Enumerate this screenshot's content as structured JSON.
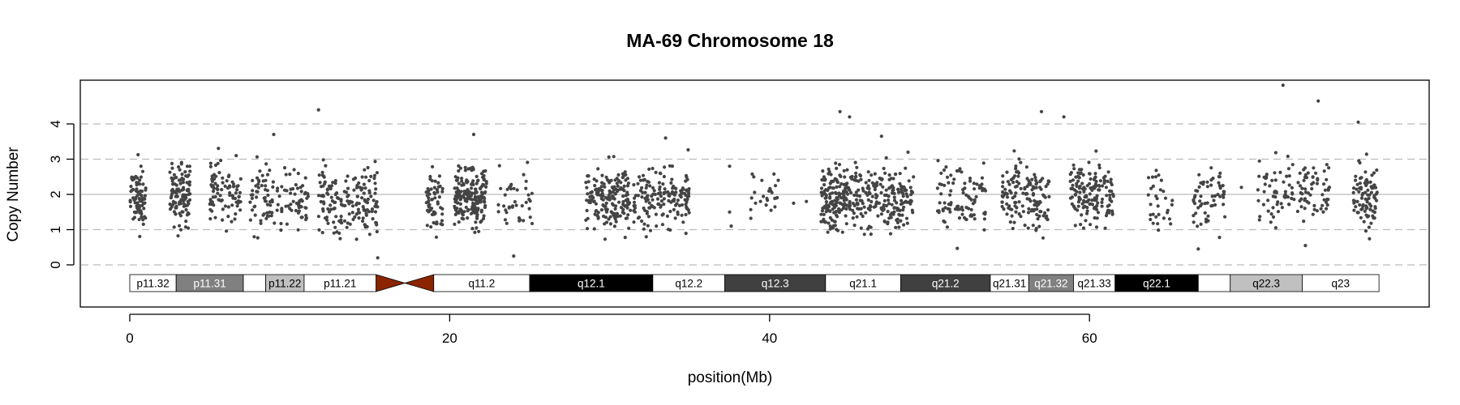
{
  "chart_data": {
    "type": "scatter",
    "title": "MA-69  Chromosome 18",
    "xlabel": "position(Mb)",
    "ylabel": "Copy Number",
    "x_ticks": [
      0,
      20,
      40,
      60
    ],
    "y_ticks": [
      0,
      1,
      2,
      3,
      4
    ],
    "xlim": [
      -3,
      81
    ],
    "ylim": [
      -1.2,
      5.2
    ],
    "point_color": "#444444",
    "hlines": [
      {
        "y": 0,
        "style": "dashed",
        "color": "#bbbbbb"
      },
      {
        "y": 1,
        "style": "dashed",
        "color": "#bbbbbb"
      },
      {
        "y": 2,
        "style": "solid",
        "color": "#bbbbbb"
      },
      {
        "y": 3,
        "style": "dashed",
        "color": "#bbbbbb"
      },
      {
        "y": 4,
        "style": "dashed",
        "color": "#bbbbbb"
      }
    ],
    "clusters": [
      {
        "x_start": 0.0,
        "x_end": 1.0,
        "center": 1.9,
        "spread": 0.45,
        "n": 80
      },
      {
        "x_start": 2.5,
        "x_end": 3.8,
        "center": 2.0,
        "spread": 0.45,
        "n": 110
      },
      {
        "x_start": 5.0,
        "x_end": 7.0,
        "center": 2.0,
        "spread": 0.45,
        "n": 90
      },
      {
        "x_start": 7.5,
        "x_end": 11.2,
        "center": 1.9,
        "spread": 0.45,
        "n": 120
      },
      {
        "x_start": 11.8,
        "x_end": 15.5,
        "center": 1.7,
        "spread": 0.5,
        "n": 170
      },
      {
        "x_start": 18.5,
        "x_end": 19.6,
        "center": 1.8,
        "spread": 0.45,
        "n": 60
      },
      {
        "x_start": 20.3,
        "x_end": 22.3,
        "center": 1.95,
        "spread": 0.4,
        "n": 190
      },
      {
        "x_start": 23.0,
        "x_end": 25.5,
        "center": 1.9,
        "spread": 0.45,
        "n": 40
      },
      {
        "x_start": 28.5,
        "x_end": 31.3,
        "center": 1.9,
        "spread": 0.45,
        "n": 180
      },
      {
        "x_start": 31.5,
        "x_end": 35.0,
        "center": 1.95,
        "spread": 0.45,
        "n": 160
      },
      {
        "x_start": 38.8,
        "x_end": 40.6,
        "center": 1.9,
        "spread": 0.4,
        "n": 25
      },
      {
        "x_start": 43.2,
        "x_end": 45.5,
        "center": 1.95,
        "spread": 0.45,
        "n": 180
      },
      {
        "x_start": 45.5,
        "x_end": 49.0,
        "center": 1.85,
        "spread": 0.45,
        "n": 180
      },
      {
        "x_start": 50.5,
        "x_end": 53.5,
        "center": 1.9,
        "spread": 0.45,
        "n": 90
      },
      {
        "x_start": 54.5,
        "x_end": 57.5,
        "center": 1.95,
        "spread": 0.45,
        "n": 140
      },
      {
        "x_start": 58.8,
        "x_end": 61.5,
        "center": 2.0,
        "spread": 0.45,
        "n": 150
      },
      {
        "x_start": 63.5,
        "x_end": 65.2,
        "center": 1.9,
        "spread": 0.45,
        "n": 30
      },
      {
        "x_start": 66.5,
        "x_end": 68.5,
        "center": 1.9,
        "spread": 0.45,
        "n": 60
      },
      {
        "x_start": 70.5,
        "x_end": 72.8,
        "center": 2.1,
        "spread": 0.45,
        "n": 60
      },
      {
        "x_start": 73.0,
        "x_end": 75.0,
        "center": 2.1,
        "spread": 0.45,
        "n": 60
      },
      {
        "x_start": 76.5,
        "x_end": 78.0,
        "center": 2.0,
        "spread": 0.45,
        "n": 90
      }
    ],
    "outliers": [
      {
        "x": 11.8,
        "y": 4.4
      },
      {
        "x": 44.4,
        "y": 4.35
      },
      {
        "x": 45.0,
        "y": 4.2
      },
      {
        "x": 57.0,
        "y": 4.35
      },
      {
        "x": 58.4,
        "y": 4.2
      },
      {
        "x": 72.1,
        "y": 5.1
      },
      {
        "x": 74.3,
        "y": 4.65
      },
      {
        "x": 76.8,
        "y": 4.05
      },
      {
        "x": 9.0,
        "y": 3.7
      },
      {
        "x": 21.5,
        "y": 3.7
      },
      {
        "x": 33.5,
        "y": 3.6
      },
      {
        "x": 47.0,
        "y": 3.65
      },
      {
        "x": 37.5,
        "y": 2.8
      },
      {
        "x": 37.5,
        "y": 1.5
      },
      {
        "x": 37.6,
        "y": 1.1
      },
      {
        "x": 41.5,
        "y": 1.75
      },
      {
        "x": 42.3,
        "y": 1.8
      },
      {
        "x": 64.5,
        "y": 2.4
      },
      {
        "x": 69.5,
        "y": 2.2
      },
      {
        "x": 24.0,
        "y": 0.25
      },
      {
        "x": 66.8,
        "y": 0.45
      },
      {
        "x": 15.5,
        "y": 0.2
      },
      {
        "x": 73.5,
        "y": 0.55
      }
    ],
    "ideogram": {
      "bands": [
        {
          "name": "p11.32",
          "start": 0.0,
          "end": 2.9,
          "color": "#ffffff",
          "text_color": "#000000"
        },
        {
          "name": "p11.31",
          "start": 2.9,
          "end": 7.1,
          "color": "#808080",
          "text_color": "#ffffff"
        },
        {
          "name": "",
          "start": 7.1,
          "end": 8.5,
          "color": "#ffffff",
          "text_color": "#000000"
        },
        {
          "name": "p11.22",
          "start": 8.5,
          "end": 10.9,
          "color": "#c0c0c0",
          "text_color": "#000000"
        },
        {
          "name": "p11.21",
          "start": 10.9,
          "end": 15.4,
          "color": "#ffffff",
          "text_color": "#000000"
        },
        {
          "name": "q11.2",
          "start": 19.0,
          "end": 25.0,
          "color": "#ffffff",
          "text_color": "#000000"
        },
        {
          "name": "q12.1",
          "start": 25.0,
          "end": 32.7,
          "color": "#000000",
          "text_color": "#ffffff"
        },
        {
          "name": "q12.2",
          "start": 32.7,
          "end": 37.2,
          "color": "#ffffff",
          "text_color": "#000000"
        },
        {
          "name": "q12.3",
          "start": 37.2,
          "end": 43.5,
          "color": "#404040",
          "text_color": "#ffffff"
        },
        {
          "name": "q21.1",
          "start": 43.5,
          "end": 48.2,
          "color": "#ffffff",
          "text_color": "#000000"
        },
        {
          "name": "q21.2",
          "start": 48.2,
          "end": 53.8,
          "color": "#404040",
          "text_color": "#ffffff"
        },
        {
          "name": "q21.31",
          "start": 53.8,
          "end": 56.2,
          "color": "#ffffff",
          "text_color": "#000000"
        },
        {
          "name": "q21.32",
          "start": 56.2,
          "end": 59.0,
          "color": "#808080",
          "text_color": "#ffffff"
        },
        {
          "name": "q21.33",
          "start": 59.0,
          "end": 61.6,
          "color": "#ffffff",
          "text_color": "#000000"
        },
        {
          "name": "q22.1",
          "start": 61.6,
          "end": 66.8,
          "color": "#000000",
          "text_color": "#ffffff"
        },
        {
          "name": "",
          "start": 66.8,
          "end": 68.8,
          "color": "#ffffff",
          "text_color": "#000000"
        },
        {
          "name": "q22.3",
          "start": 68.8,
          "end": 73.3,
          "color": "#c0c0c0",
          "text_color": "#000000"
        },
        {
          "name": "q23",
          "start": 73.3,
          "end": 78.1,
          "color": "#ffffff",
          "text_color": "#000000"
        }
      ],
      "centromere": {
        "start": 15.4,
        "end": 19.0,
        "color": "#8b2500"
      }
    }
  }
}
